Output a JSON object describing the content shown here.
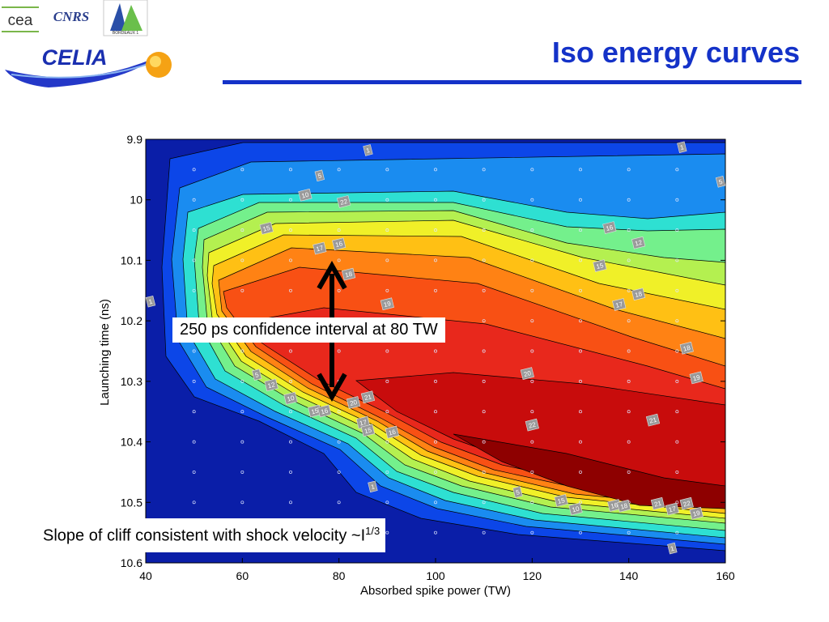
{
  "slide": {
    "title": "Iso energy curves",
    "logos": {
      "cea": "cea",
      "cnrs": "CNRS",
      "univ": "BORDEAUX 1",
      "celia": "CELIA"
    },
    "accent_color": "#1432c8"
  },
  "annotations": {
    "confidence": "250 ps confidence interval at 80 TW",
    "slope_prefix": "Slope of cliff consistent with shock velocity ~I",
    "slope_exp": "1/3"
  },
  "chart_data": {
    "type": "heatmap",
    "subtype": "filled-contour",
    "xlabel": "Absorbed spike power (TW)",
    "ylabel": "Launching time (ns)",
    "xlim": [
      40,
      160
    ],
    "ylim": [
      9.9,
      10.6
    ],
    "y_reversed": true,
    "xticks": [
      "40",
      "60",
      "80",
      "100",
      "120",
      "140",
      "160"
    ],
    "yticks": [
      "9.9",
      "10",
      "10.1",
      "10.2",
      "10.3",
      "10.4",
      "10.5",
      "10.6"
    ],
    "contour_levels": [
      1,
      5,
      10,
      12,
      15,
      16,
      17,
      18,
      19,
      20,
      21,
      22
    ],
    "colormap": [
      "#0a1ea8",
      "#0c46e8",
      "#1a8cf0",
      "#2ee0d2",
      "#74f08c",
      "#b4f050",
      "#f0f028",
      "#ffc014",
      "#ff8214",
      "#f85014",
      "#e8281c",
      "#c80c0c",
      "#8e0000"
    ],
    "contour_labels": [
      {
        "text": "1",
        "x": 86,
        "y": 9.918
      },
      {
        "text": "1",
        "x": 151,
        "y": 9.913
      },
      {
        "text": "1",
        "x": 41,
        "y": 10.168
      },
      {
        "text": "5",
        "x": 76,
        "y": 9.96
      },
      {
        "text": "5",
        "x": 159,
        "y": 9.97
      },
      {
        "text": "10",
        "x": 73,
        "y": 9.992
      },
      {
        "text": "22",
        "x": 81,
        "y": 10.003
      },
      {
        "text": "15",
        "x": 65,
        "y": 10.047
      },
      {
        "text": "17",
        "x": 76,
        "y": 10.08
      },
      {
        "text": "16",
        "x": 80,
        "y": 10.073
      },
      {
        "text": "18",
        "x": 82,
        "y": 10.123
      },
      {
        "text": "19",
        "x": 90,
        "y": 10.172
      },
      {
        "text": "16",
        "x": 136,
        "y": 10.046
      },
      {
        "text": "12",
        "x": 142,
        "y": 10.071
      },
      {
        "text": "15",
        "x": 134,
        "y": 10.109
      },
      {
        "text": "17",
        "x": 138,
        "y": 10.173
      },
      {
        "text": "18",
        "x": 142,
        "y": 10.156
      },
      {
        "text": "18",
        "x": 152,
        "y": 10.245
      },
      {
        "text": "19",
        "x": 154,
        "y": 10.294
      },
      {
        "text": "20",
        "x": 119,
        "y": 10.287
      },
      {
        "text": "21",
        "x": 145,
        "y": 10.364
      },
      {
        "text": "22",
        "x": 120,
        "y": 10.372
      },
      {
        "text": "5",
        "x": 63,
        "y": 10.289
      },
      {
        "text": "12",
        "x": 66,
        "y": 10.306
      },
      {
        "text": "10",
        "x": 70,
        "y": 10.328
      },
      {
        "text": "15",
        "x": 75,
        "y": 10.349
      },
      {
        "text": "16",
        "x": 77,
        "y": 10.349
      },
      {
        "text": "20",
        "x": 83,
        "y": 10.335
      },
      {
        "text": "21",
        "x": 86,
        "y": 10.326
      },
      {
        "text": "17",
        "x": 85,
        "y": 10.368
      },
      {
        "text": "15",
        "x": 86,
        "y": 10.381
      },
      {
        "text": "16",
        "x": 91,
        "y": 10.384
      },
      {
        "text": "1",
        "x": 87,
        "y": 10.474
      },
      {
        "text": "5",
        "x": 117,
        "y": 10.483
      },
      {
        "text": "15",
        "x": 126,
        "y": 10.497
      },
      {
        "text": "10",
        "x": 129,
        "y": 10.511
      },
      {
        "text": "16",
        "x": 137,
        "y": 10.505
      },
      {
        "text": "18",
        "x": 139,
        "y": 10.506
      },
      {
        "text": "21",
        "x": 146,
        "y": 10.502
      },
      {
        "text": "22",
        "x": 152,
        "y": 10.502
      },
      {
        "text": "17",
        "x": 149,
        "y": 10.511
      },
      {
        "text": "19",
        "x": 154,
        "y": 10.518
      },
      {
        "text": "1",
        "x": 149,
        "y": 10.576
      }
    ]
  }
}
